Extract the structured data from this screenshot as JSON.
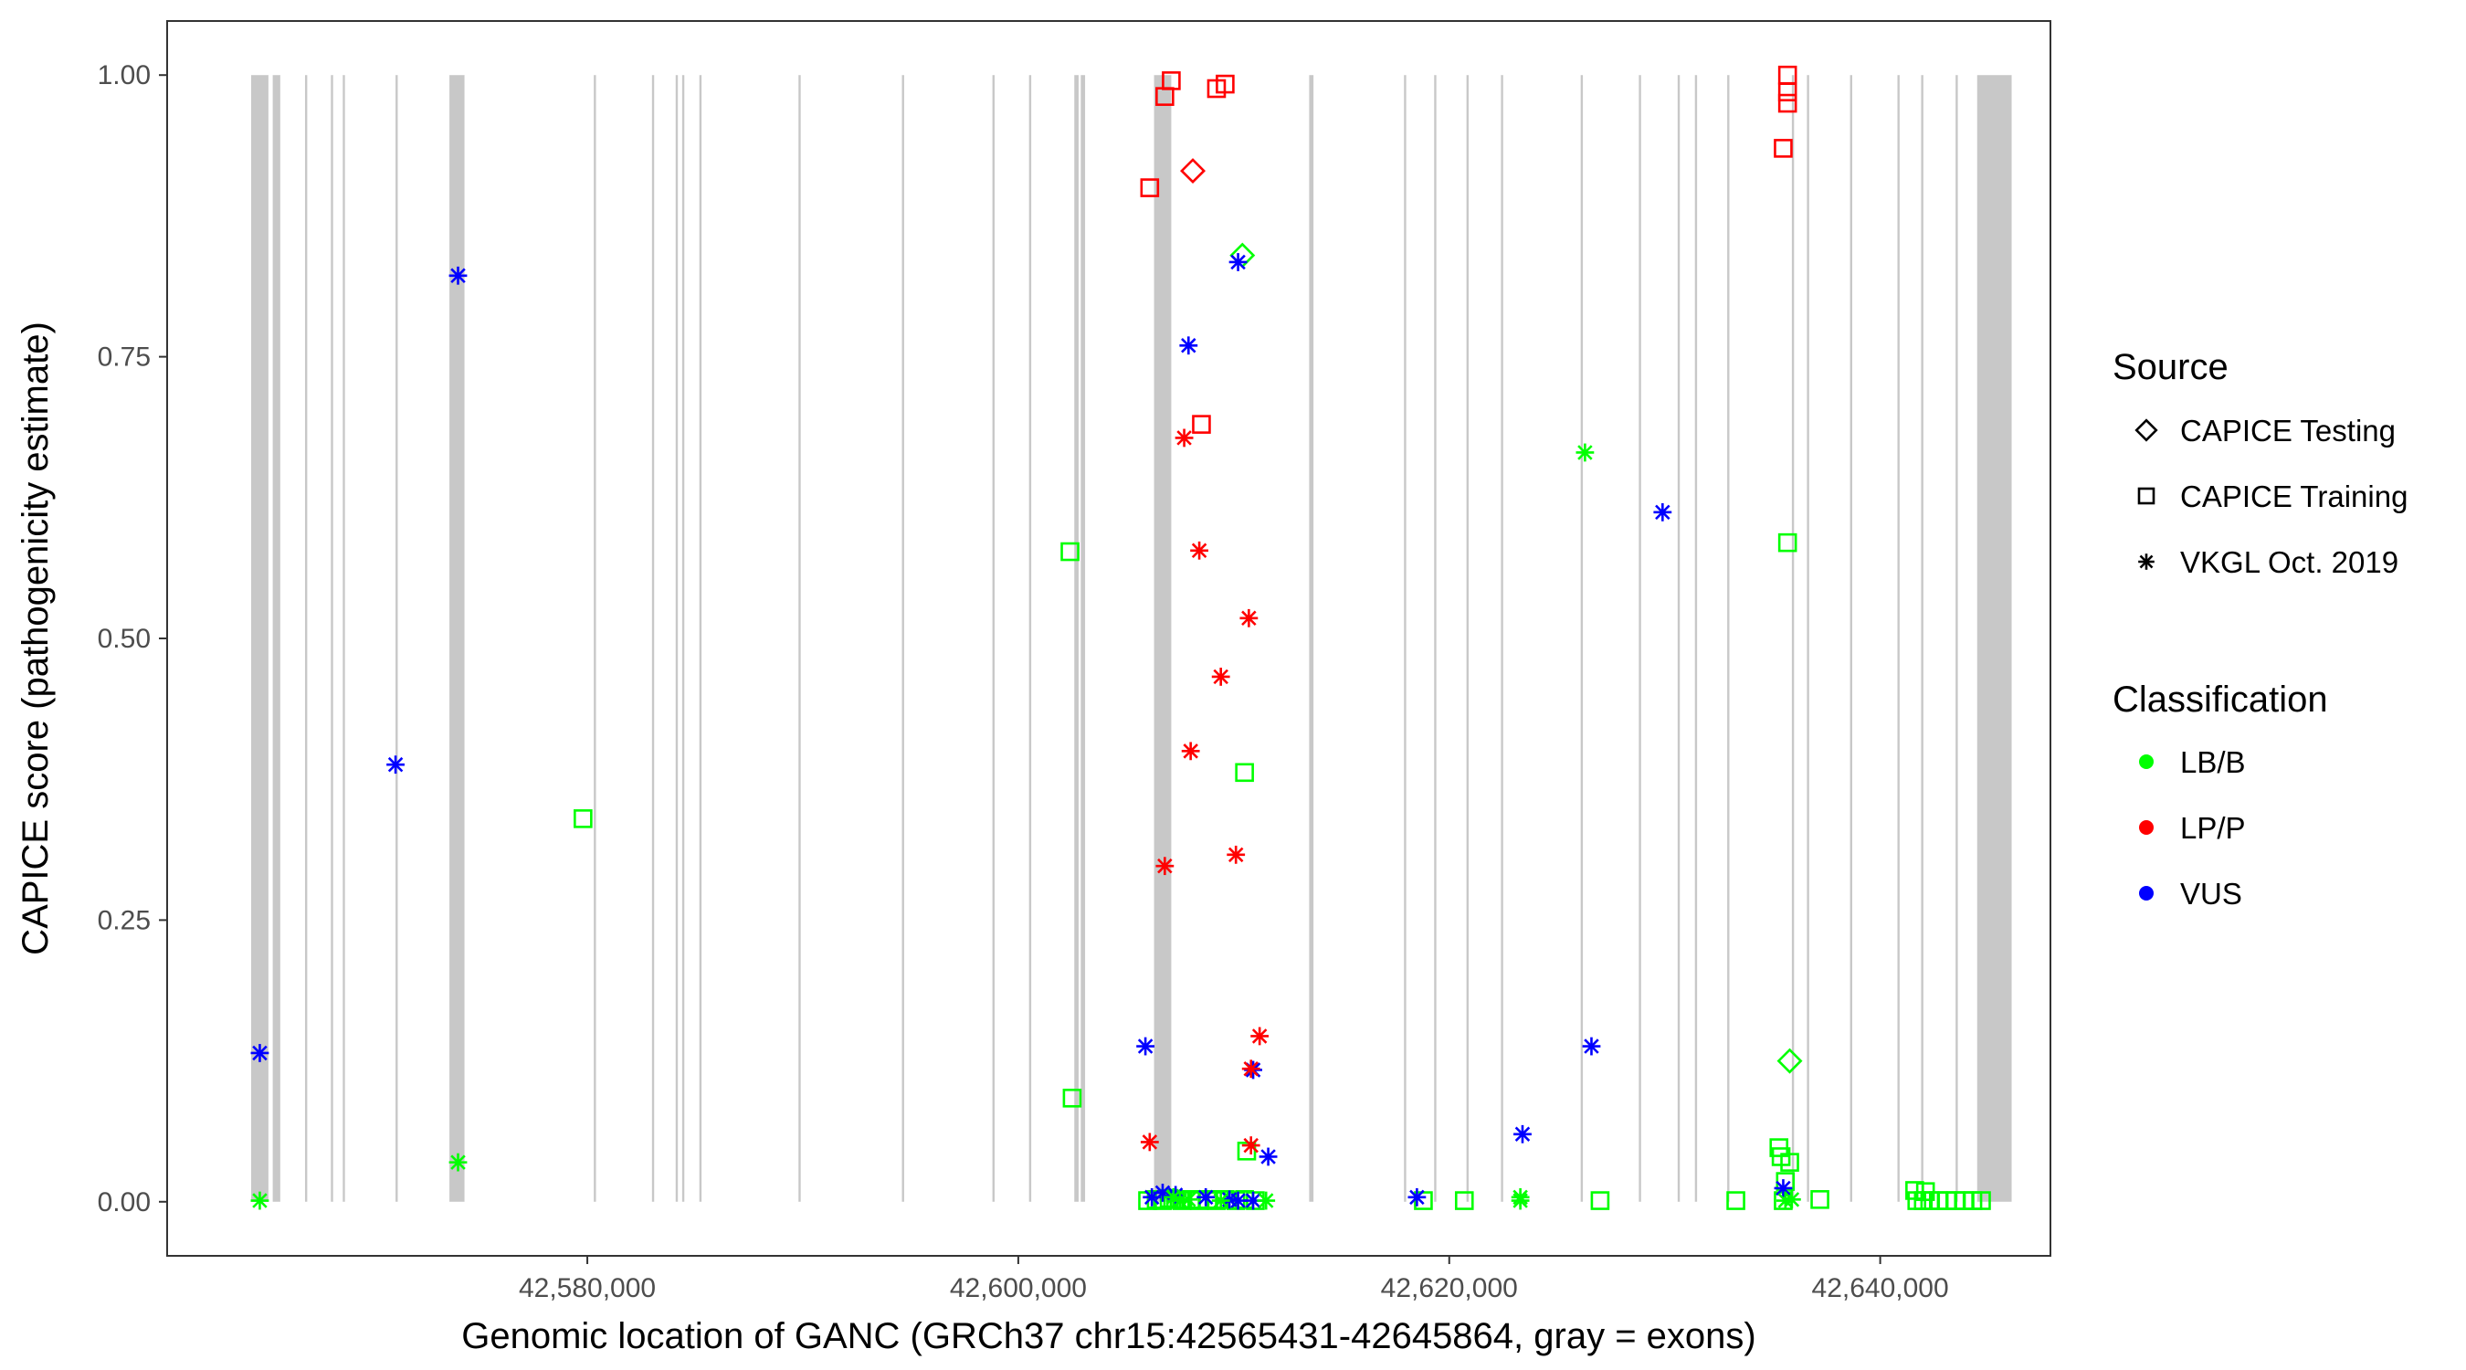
{
  "chart_data": {
    "type": "scatter",
    "title": "",
    "xlabel": "Genomic location of GANC (GRCh37 chr15:42565431-42645864, gray = exons)",
    "ylabel": "CAPICE score (pathogenicity estimate)",
    "xlim": [
      42560500,
      42647900
    ],
    "ylim": [
      -0.048,
      1.048
    ],
    "x_ticks": [
      42580000,
      42600000,
      42620000,
      42640000
    ],
    "x_tick_labels": [
      "42,580,000",
      "42,600,000",
      "42,620,000",
      "42,640,000"
    ],
    "y_ticks": [
      0,
      0.25,
      0.5,
      0.75,
      1
    ],
    "y_tick_labels": [
      "0.00",
      "0.25",
      "0.50",
      "0.75",
      "1.00"
    ],
    "grid": false,
    "legend_placement": "right",
    "colors": {
      "LB/B": "#00ff00",
      "LP/P": "#ff0000",
      "VUS": "#0000ff",
      "exon": "#c8c8c8",
      "border": "#333333"
    },
    "legend": {
      "source_title": "Source",
      "source_items": [
        {
          "shape": "diamond",
          "label": "CAPICE Testing"
        },
        {
          "shape": "square",
          "label": "CAPICE Training"
        },
        {
          "shape": "asterisk",
          "label": "VKGL Oct. 2019"
        }
      ],
      "class_title": "Classification",
      "class_items": [
        {
          "cls": "LB/B",
          "label": "LB/B"
        },
        {
          "cls": "LP/P",
          "label": "LP/P"
        },
        {
          "cls": "VUS",
          "label": "VUS"
        }
      ]
    },
    "exons": [
      [
        42564400,
        42565200
      ],
      [
        42565400,
        42565750
      ],
      [
        42566900,
        42567000
      ],
      [
        42568100,
        42568200
      ],
      [
        42568650,
        42568750
      ],
      [
        42571100,
        42571200
      ],
      [
        42573600,
        42574300
      ],
      [
        42580300,
        42580400
      ],
      [
        42583000,
        42583100
      ],
      [
        42584100,
        42584200
      ],
      [
        42584400,
        42584500
      ],
      [
        42585200,
        42585300
      ],
      [
        42589800,
        42589900
      ],
      [
        42594600,
        42594700
      ],
      [
        42598800,
        42598900
      ],
      [
        42600500,
        42600600
      ],
      [
        42602600,
        42602800
      ],
      [
        42602900,
        42603100
      ],
      [
        42606300,
        42607100
      ],
      [
        42613500,
        42613700
      ],
      [
        42617900,
        42618000
      ],
      [
        42619300,
        42619400
      ],
      [
        42620800,
        42620900
      ],
      [
        42622400,
        42622500
      ],
      [
        42626100,
        42626200
      ],
      [
        42628800,
        42628900
      ],
      [
        42630600,
        42630700
      ],
      [
        42631400,
        42631500
      ],
      [
        42632900,
        42633000
      ],
      [
        42635900,
        42636000
      ],
      [
        42636600,
        42636700
      ],
      [
        42638600,
        42638700
      ],
      [
        42640800,
        42640900
      ],
      [
        42641900,
        42642000
      ],
      [
        42643500,
        42643600
      ],
      [
        42644500,
        42646100
      ]
    ],
    "series": [
      {
        "source": "CAPICE Testing",
        "cls": "LP/P",
        "points": [
          [
            42608100,
            0.915
          ]
        ]
      },
      {
        "source": "CAPICE Testing",
        "cls": "LB/B",
        "points": [
          [
            42610400,
            0.84
          ],
          [
            42635800,
            0.125
          ]
        ]
      },
      {
        "source": "CAPICE Training",
        "cls": "LP/P",
        "points": [
          [
            42607100,
            0.995
          ],
          [
            42606800,
            0.981
          ],
          [
            42609200,
            0.988
          ],
          [
            42609600,
            0.992
          ],
          [
            42635700,
            1.0
          ],
          [
            42635700,
            0.985
          ],
          [
            42635700,
            0.975
          ],
          [
            42635500,
            0.935
          ],
          [
            42606100,
            0.9
          ],
          [
            42608500,
            0.69
          ]
        ]
      },
      {
        "source": "CAPICE Training",
        "cls": "LB/B",
        "points": [
          [
            42602400,
            0.577
          ],
          [
            42635700,
            0.585
          ],
          [
            42579800,
            0.34
          ],
          [
            42610500,
            0.381
          ],
          [
            42602500,
            0.092
          ],
          [
            42610600,
            0.045
          ],
          [
            42606000,
            0.001
          ],
          [
            42606400,
            0.002
          ],
          [
            42606700,
            0.001
          ],
          [
            42607000,
            0.003
          ],
          [
            42607300,
            0.002
          ],
          [
            42607600,
            0.001
          ],
          [
            42608000,
            0.002
          ],
          [
            42608400,
            0.001
          ],
          [
            42608800,
            0.002
          ],
          [
            42609200,
            0.001
          ],
          [
            42609600,
            0.002
          ],
          [
            42610100,
            0.001
          ],
          [
            42610500,
            0.002
          ],
          [
            42611000,
            0.001
          ],
          [
            42618800,
            0.001
          ],
          [
            42620700,
            0.001
          ],
          [
            42627000,
            0.001
          ],
          [
            42633300,
            0.001
          ],
          [
            42635300,
            0.048
          ],
          [
            42635400,
            0.04
          ],
          [
            42635800,
            0.035
          ],
          [
            42635600,
            0.018
          ],
          [
            42635500,
            0.001
          ],
          [
            42637200,
            0.002
          ],
          [
            42641600,
            0.01
          ],
          [
            42642100,
            0.009
          ],
          [
            42641700,
            0.001
          ],
          [
            42642000,
            0.001
          ],
          [
            42642300,
            0.001
          ],
          [
            42642700,
            0.001
          ],
          [
            42643100,
            0.001
          ],
          [
            42643500,
            0.001
          ],
          [
            42643900,
            0.001
          ],
          [
            42644300,
            0.001
          ],
          [
            42644700,
            0.001
          ]
        ]
      },
      {
        "source": "VKGL Oct. 2019",
        "cls": "VUS",
        "points": [
          [
            42564800,
            0.132
          ],
          [
            42571100,
            0.388
          ],
          [
            42574000,
            0.822
          ],
          [
            42610200,
            0.834
          ],
          [
            42607900,
            0.76
          ],
          [
            42629900,
            0.612
          ],
          [
            42626600,
            0.138
          ],
          [
            42605900,
            0.138
          ],
          [
            42610900,
            0.117
          ],
          [
            42611600,
            0.04
          ],
          [
            42623400,
            0.06
          ],
          [
            42618500,
            0.004
          ],
          [
            42635500,
            0.012
          ],
          [
            42606200,
            0.004
          ],
          [
            42606700,
            0.008
          ],
          [
            42607300,
            0.006
          ],
          [
            42608700,
            0.004
          ],
          [
            42609800,
            0.002
          ],
          [
            42610200,
            0.001
          ],
          [
            42610900,
            0.001
          ]
        ]
      },
      {
        "source": "VKGL Oct. 2019",
        "cls": "LP/P",
        "points": [
          [
            42607700,
            0.678
          ],
          [
            42608400,
            0.578
          ],
          [
            42610700,
            0.518
          ],
          [
            42609400,
            0.466
          ],
          [
            42608000,
            0.4
          ],
          [
            42606800,
            0.298
          ],
          [
            42610100,
            0.308
          ],
          [
            42611200,
            0.147
          ],
          [
            42610800,
            0.118
          ],
          [
            42606100,
            0.053
          ],
          [
            42610800,
            0.05
          ]
        ]
      },
      {
        "source": "VKGL Oct. 2019",
        "cls": "LB/B",
        "points": [
          [
            42626300,
            0.665
          ],
          [
            42574000,
            0.035
          ],
          [
            42564800,
            0.001
          ],
          [
            42607200,
            0.004
          ],
          [
            42607500,
            0.001
          ],
          [
            42607900,
            0.002
          ],
          [
            42609400,
            0.001
          ],
          [
            42611500,
            0.001
          ],
          [
            42623300,
            0.004
          ],
          [
            42623300,
            0.001
          ],
          [
            42635600,
            0.001
          ],
          [
            42635900,
            0.002
          ]
        ]
      }
    ]
  }
}
